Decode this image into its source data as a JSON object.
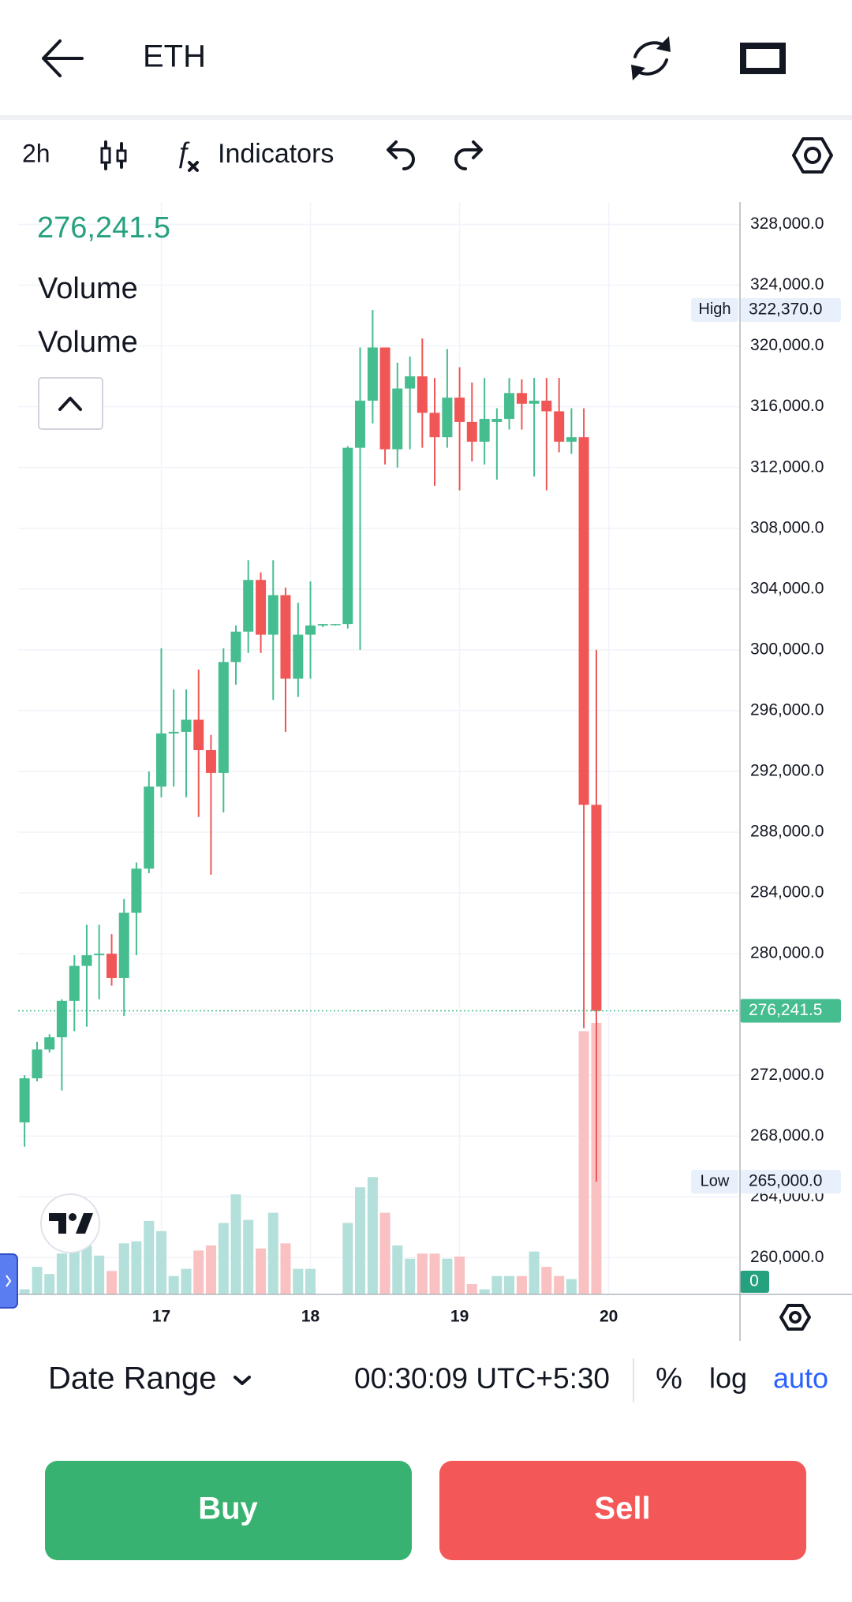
{
  "header": {
    "title": "ETH"
  },
  "toolbar": {
    "interval": "2h",
    "indicators": "Indicators"
  },
  "chart_data": {
    "type": "candlestick",
    "x": [
      16.083,
      16.167,
      16.25,
      16.333,
      16.417,
      16.5,
      16.583,
      16.667,
      16.75,
      16.833,
      16.917,
      17,
      17.083,
      17.167,
      17.25,
      17.333,
      17.417,
      17.5,
      17.583,
      17.667,
      17.75,
      17.833,
      17.917,
      18,
      18.083,
      18.167,
      18.25,
      18.333,
      18.417,
      18.5,
      18.583,
      18.667,
      18.75,
      18.833,
      18.917,
      19,
      19.083,
      19.167,
      19.25,
      19.333,
      19.417,
      19.5,
      19.583,
      19.667,
      19.75,
      19.833,
      19.917
    ],
    "open": [
      268900,
      271800,
      273700,
      274500,
      276900,
      279200,
      279900,
      280000,
      278400,
      282700,
      285600,
      291000,
      294500,
      294600,
      295400,
      293400,
      291900,
      299200,
      301200,
      304600,
      301000,
      303600,
      298100,
      301000,
      301600,
      301700,
      301700,
      313300,
      316400,
      319900,
      313200,
      317200,
      318000,
      315600,
      314000,
      316600,
      315000,
      313700,
      315000,
      315200,
      316900,
      316200,
      316400,
      315700,
      313700,
      314000,
      289800
    ],
    "high": [
      272000,
      274200,
      274700,
      277000,
      279900,
      281900,
      281900,
      281300,
      283600,
      286000,
      292000,
      300100,
      297400,
      297400,
      298700,
      294400,
      300100,
      301600,
      305900,
      305100,
      305900,
      304100,
      303100,
      304500,
      301700,
      301700,
      313400,
      319900,
      322370,
      319900,
      318900,
      319300,
      320500,
      317900,
      319800,
      318600,
      317600,
      317900,
      315900,
      317900,
      317800,
      317900,
      317900,
      317900,
      315900,
      315900,
      300000
    ],
    "low": [
      267300,
      271600,
      273500,
      271000,
      274900,
      275200,
      277000,
      277900,
      275900,
      279900,
      285300,
      290300,
      291000,
      290300,
      289000,
      285200,
      289300,
      297700,
      299800,
      299800,
      296700,
      294600,
      296900,
      298100,
      301500,
      301600,
      301400,
      300000,
      314900,
      312200,
      312000,
      313200,
      313300,
      310800,
      313300,
      310500,
      312400,
      312200,
      311200,
      314500,
      314500,
      311400,
      310500,
      313000,
      312900,
      275100,
      265000
    ],
    "close": [
      271800,
      273700,
      274500,
      276900,
      279200,
      279900,
      280000,
      278400,
      282700,
      285600,
      291000,
      294500,
      294600,
      295400,
      293400,
      291900,
      299200,
      301200,
      304600,
      301000,
      303600,
      298100,
      301000,
      301600,
      301700,
      301700,
      313300,
      316400,
      319900,
      313200,
      317200,
      318000,
      315600,
      314000,
      316600,
      315000,
      313700,
      315200,
      315200,
      316900,
      316200,
      316400,
      315700,
      313700,
      314000,
      289800,
      276241.5
    ],
    "volume": [
      5,
      27,
      20,
      40,
      45,
      48,
      38,
      23,
      50,
      52,
      72,
      62,
      18,
      25,
      43,
      48,
      70,
      98,
      73,
      45,
      80,
      50,
      25,
      25,
      0,
      0,
      70,
      105,
      115,
      80,
      48,
      35,
      40,
      40,
      35,
      37,
      10,
      5,
      18,
      18,
      18,
      42,
      27,
      18,
      15,
      258,
      266
    ],
    "up_color": "#45bd8f",
    "down_color": "#f05656",
    "volume_up_color": "#b3e0da",
    "volume_down_color": "#f9c1c1",
    "xlim": [
      16.04,
      20.88
    ],
    "xticks": [
      17,
      18,
      19,
      20
    ],
    "ylim": [
      257580,
      329480
    ],
    "yticks": [
      {
        "value": 328000,
        "label": "328,000.0"
      },
      {
        "value": 324000,
        "label": "324,000.0"
      },
      {
        "value": 320000,
        "label": "320,000.0"
      },
      {
        "value": 316000,
        "label": "316,000.0"
      },
      {
        "value": 312000,
        "label": "312,000.0"
      },
      {
        "value": 308000,
        "label": "308,000.0"
      },
      {
        "value": 304000,
        "label": "304,000.0"
      },
      {
        "value": 300000,
        "label": "300,000.0"
      },
      {
        "value": 296000,
        "label": "296,000.0"
      },
      {
        "value": 292000,
        "label": "292,000.0"
      },
      {
        "value": 288000,
        "label": "288,000.0"
      },
      {
        "value": 284000,
        "label": "284,000.0"
      },
      {
        "value": 280000,
        "label": "280,000.0"
      },
      {
        "value": 276000,
        "label": "276,000.0"
      },
      {
        "value": 272000,
        "label": "272,000.0"
      },
      {
        "value": 268000,
        "label": "268,000.0"
      },
      {
        "value": 264000,
        "label": "264,000.0"
      },
      {
        "value": 260000,
        "label": "260,000.0"
      }
    ],
    "grid": true,
    "last_price": {
      "value": 276241.5,
      "label": "276,241.5"
    },
    "high_marker": {
      "name": "High",
      "value": 322370,
      "label": "322,370.0"
    },
    "low_marker": {
      "name": "Low",
      "value": 265000,
      "label": "265,000.0"
    },
    "legend": [
      "Volume",
      "Volume"
    ],
    "volume_label": 0
  },
  "footer": {
    "date_range": "Date Range",
    "time": "00:30:09 UTC+5:30",
    "percent": "%",
    "log": "log",
    "auto": "auto"
  },
  "actions": {
    "buy": "Buy",
    "sell": "Sell"
  }
}
